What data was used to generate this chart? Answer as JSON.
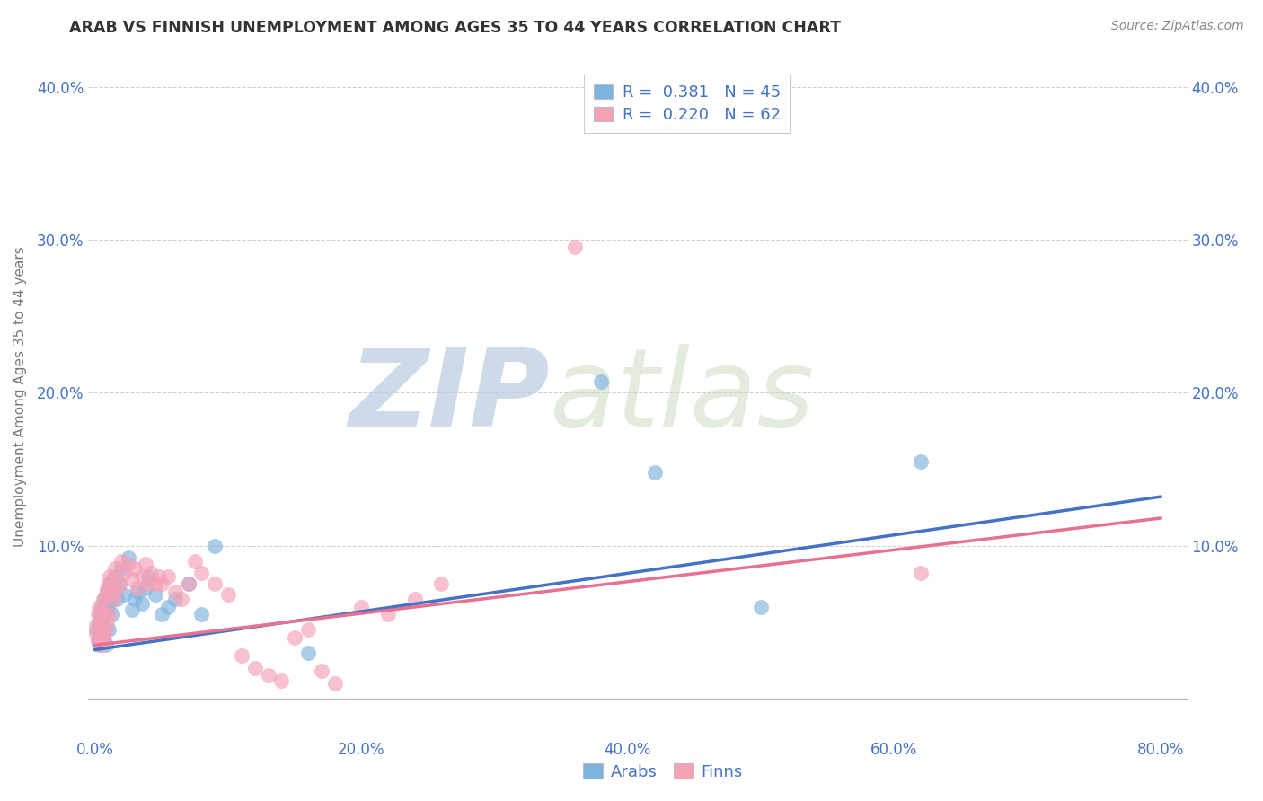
{
  "title": "ARAB VS FINNISH UNEMPLOYMENT AMONG AGES 35 TO 44 YEARS CORRELATION CHART",
  "source": "Source: ZipAtlas.com",
  "ylabel": "Unemployment Among Ages 35 to 44 years",
  "xlim": [
    -0.005,
    0.82
  ],
  "ylim": [
    -0.025,
    0.42
  ],
  "yticks": [
    0.0,
    0.1,
    0.2,
    0.3,
    0.4
  ],
  "xticks": [
    0.0,
    0.2,
    0.4,
    0.6,
    0.8
  ],
  "xtick_labels": [
    "0.0%",
    "20.0%",
    "40.0%",
    "60.0%",
    "80.0%"
  ],
  "ytick_labels": [
    "",
    "10.0%",
    "20.0%",
    "30.0%",
    "40.0%"
  ],
  "arab_R": 0.381,
  "arab_N": 45,
  "finn_R": 0.22,
  "finn_N": 62,
  "arab_color": "#7EB3E0",
  "finn_color": "#F4A0B5",
  "arab_line_color": "#4472C4",
  "finn_line_color": "#E87090",
  "background_color": "#FFFFFF",
  "grid_color": "#CCCCCC",
  "title_color": "#333333",
  "axis_label_color": "#777777",
  "tick_label_color": "#4472C4",
  "arab_x": [
    0.001,
    0.002,
    0.003,
    0.003,
    0.004,
    0.004,
    0.005,
    0.005,
    0.006,
    0.006,
    0.007,
    0.007,
    0.008,
    0.008,
    0.009,
    0.01,
    0.01,
    0.011,
    0.012,
    0.013,
    0.014,
    0.015,
    0.016,
    0.018,
    0.02,
    0.022,
    0.025,
    0.028,
    0.03,
    0.032,
    0.035,
    0.038,
    0.04,
    0.045,
    0.05,
    0.055,
    0.06,
    0.07,
    0.08,
    0.09,
    0.16,
    0.38,
    0.42,
    0.5,
    0.62
  ],
  "arab_y": [
    0.045,
    0.038,
    0.05,
    0.035,
    0.048,
    0.055,
    0.042,
    0.06,
    0.052,
    0.038,
    0.065,
    0.045,
    0.058,
    0.035,
    0.07,
    0.062,
    0.045,
    0.075,
    0.068,
    0.055,
    0.072,
    0.08,
    0.065,
    0.075,
    0.085,
    0.068,
    0.092,
    0.058,
    0.065,
    0.07,
    0.062,
    0.072,
    0.08,
    0.068,
    0.055,
    0.06,
    0.065,
    0.075,
    0.055,
    0.1,
    0.03,
    0.207,
    0.148,
    0.06,
    0.155
  ],
  "finn_x": [
    0.001,
    0.001,
    0.002,
    0.002,
    0.003,
    0.003,
    0.004,
    0.004,
    0.005,
    0.005,
    0.006,
    0.006,
    0.007,
    0.007,
    0.008,
    0.008,
    0.009,
    0.009,
    0.01,
    0.01,
    0.011,
    0.012,
    0.013,
    0.014,
    0.015,
    0.016,
    0.018,
    0.02,
    0.022,
    0.025,
    0.028,
    0.03,
    0.032,
    0.035,
    0.038,
    0.04,
    0.042,
    0.045,
    0.048,
    0.05,
    0.055,
    0.06,
    0.065,
    0.07,
    0.075,
    0.08,
    0.09,
    0.1,
    0.11,
    0.12,
    0.13,
    0.14,
    0.15,
    0.16,
    0.17,
    0.18,
    0.2,
    0.22,
    0.24,
    0.26,
    0.36,
    0.62
  ],
  "finn_y": [
    0.042,
    0.048,
    0.038,
    0.055,
    0.045,
    0.06,
    0.04,
    0.052,
    0.058,
    0.035,
    0.065,
    0.042,
    0.055,
    0.038,
    0.068,
    0.045,
    0.072,
    0.05,
    0.075,
    0.055,
    0.08,
    0.068,
    0.078,
    0.065,
    0.085,
    0.072,
    0.075,
    0.09,
    0.082,
    0.088,
    0.078,
    0.085,
    0.072,
    0.08,
    0.088,
    0.075,
    0.082,
    0.075,
    0.08,
    0.075,
    0.08,
    0.07,
    0.065,
    0.075,
    0.09,
    0.082,
    0.075,
    0.068,
    0.028,
    0.02,
    0.015,
    0.012,
    0.04,
    0.045,
    0.018,
    0.01,
    0.06,
    0.055,
    0.065,
    0.075,
    0.295,
    0.082
  ],
  "arab_line_x0": 0.0,
  "arab_line_y0": 0.032,
  "arab_line_x1": 0.8,
  "arab_line_y1": 0.132,
  "finn_line_x0": 0.0,
  "finn_line_y0": 0.035,
  "finn_line_x1": 0.8,
  "finn_line_y1": 0.118
}
